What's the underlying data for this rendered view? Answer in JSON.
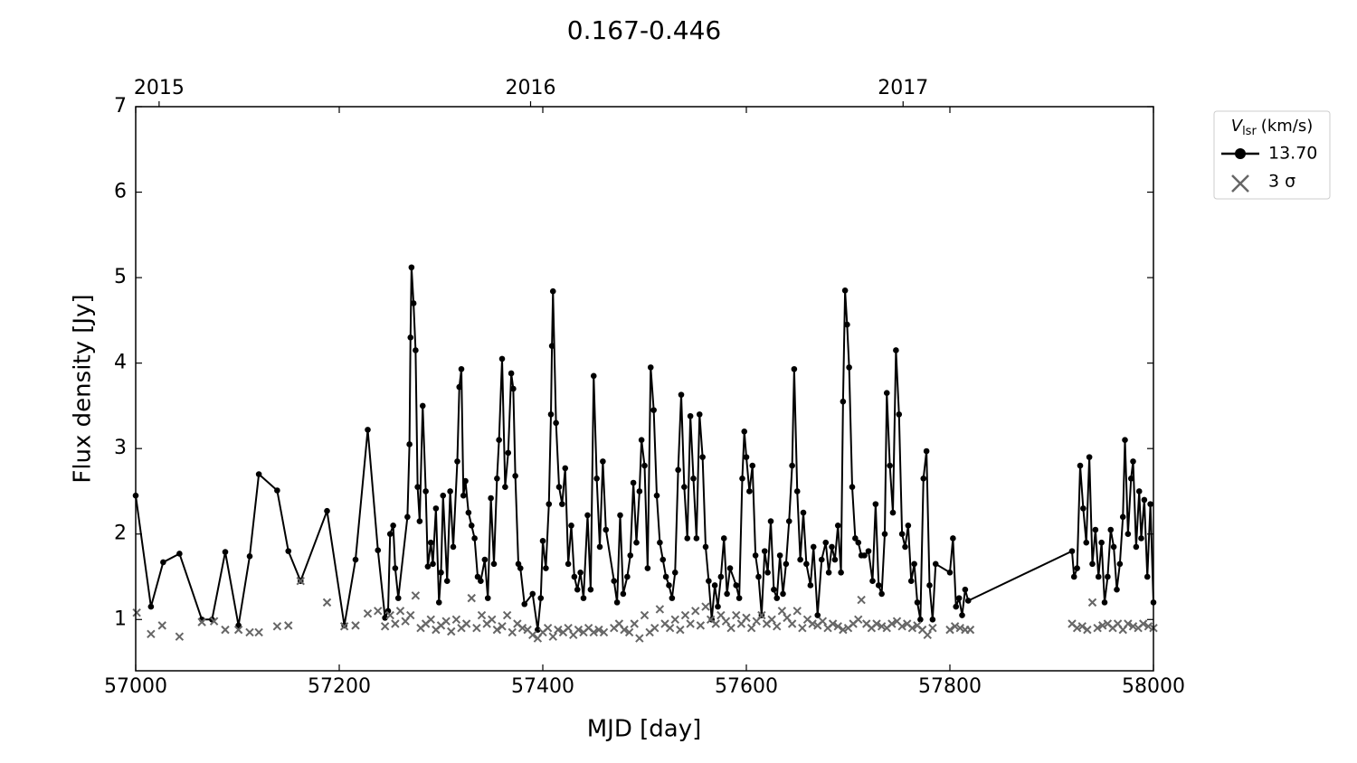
{
  "chart_data": {
    "type": "line",
    "title": "0.167-0.446",
    "xlabel": "MJD [day]",
    "ylabel": "Flux density [Jy]",
    "xlim": [
      57000,
      58000
    ],
    "xticks": [
      57000,
      57200,
      57400,
      57600,
      57800,
      58000
    ],
    "x2ticks": [
      {
        "value": 57023,
        "label": "2015"
      },
      {
        "value": 57388,
        "label": "2016"
      },
      {
        "value": 57754,
        "label": "2017"
      }
    ],
    "ylim": [
      0.4,
      7
    ],
    "yticks": [
      1,
      2,
      3,
      4,
      5,
      6,
      7
    ],
    "legend_title": {
      "symbol": "V",
      "subscript": "lsr",
      "unit": "(km/s)"
    },
    "legend": "outside upper right",
    "series": [
      {
        "name": "13.70",
        "color": "#000000",
        "marker": "circle",
        "x": [
          57000,
          57015,
          57027,
          57043,
          57065,
          57075,
          57088,
          57101,
          57112,
          57121,
          57139,
          57150,
          57162,
          57188,
          57205,
          57216,
          57228,
          57238,
          57245,
          57248,
          57250,
          57253,
          57255,
          57258,
          57267,
          57269,
          57270,
          57271,
          57273,
          57275,
          57277,
          57279,
          57282,
          57285,
          57287,
          57290,
          57292,
          57295,
          57298,
          57300,
          57302,
          57306,
          57309,
          57312,
          57316,
          57318,
          57320,
          57322,
          57324,
          57327,
          57330,
          57333,
          57336,
          57339,
          57343,
          57346,
          57349,
          57352,
          57355,
          57357,
          57360,
          57363,
          57366,
          57369,
          57371,
          57373,
          57376,
          57378,
          57382,
          57390,
          57395,
          57398,
          57400,
          57403,
          57406,
          57408,
          57409,
          57410,
          57413,
          57416,
          57419,
          57422,
          57425,
          57428,
          57431,
          57434,
          57437,
          57440,
          57444,
          57447,
          57450,
          57453,
          57456,
          57459,
          57462,
          57470,
          57473,
          57476,
          57479,
          57483,
          57486,
          57489,
          57492,
          57495,
          57497,
          57500,
          57503,
          57506,
          57509,
          57512,
          57515,
          57518,
          57521,
          57524,
          57527,
          57530,
          57533,
          57536,
          57539,
          57542,
          57545,
          57548,
          57551,
          57554,
          57557,
          57560,
          57563,
          57566,
          57569,
          57572,
          57575,
          57578,
          57581,
          57584,
          57590,
          57593,
          57596,
          57598,
          57600,
          57603,
          57606,
          57609,
          57612,
          57615,
          57618,
          57621,
          57624,
          57627,
          57630,
          57633,
          57636,
          57639,
          57642,
          57645,
          57647,
          57650,
          57653,
          57656,
          57659,
          57663,
          57666,
          57670,
          57674,
          57678,
          57681,
          57684,
          57687,
          57690,
          57693,
          57695,
          57697,
          57699,
          57701,
          57704,
          57707,
          57710,
          57713,
          57716,
          57720,
          57724,
          57727,
          57730,
          57733,
          57736,
          57738,
          57741,
          57744,
          57747,
          57750,
          57753,
          57756,
          57759,
          57762,
          57765,
          57768,
          57771,
          57774,
          57777,
          57780,
          57783,
          57786,
          57800,
          57803,
          57806,
          57809,
          57812,
          57815,
          57818,
          57920,
          57922,
          57925,
          57928,
          57931,
          57934,
          57937,
          57940,
          57943,
          57946,
          57949,
          57952,
          57955,
          57958,
          57961,
          57964,
          57967,
          57970,
          57972,
          57975,
          57978,
          57980,
          57983,
          57986,
          57988,
          57991,
          57994,
          57997,
          58000
        ],
        "values": [
          2.45,
          1.15,
          1.67,
          1.77,
          1.0,
          1.0,
          1.79,
          0.93,
          1.74,
          2.7,
          2.51,
          1.8,
          1.45,
          2.27,
          0.93,
          1.7,
          3.22,
          1.81,
          1.02,
          1.1,
          2.0,
          2.1,
          1.6,
          1.25,
          2.2,
          3.05,
          4.3,
          5.12,
          4.7,
          4.15,
          2.55,
          2.15,
          3.5,
          2.5,
          1.62,
          1.9,
          1.65,
          2.3,
          1.2,
          1.55,
          2.45,
          1.45,
          2.5,
          1.85,
          2.85,
          3.72,
          3.93,
          2.45,
          2.62,
          2.25,
          2.1,
          1.95,
          1.5,
          1.45,
          1.7,
          1.25,
          2.42,
          1.65,
          2.65,
          3.1,
          4.05,
          2.55,
          2.95,
          3.88,
          3.7,
          2.68,
          1.65,
          1.6,
          1.18,
          1.3,
          0.88,
          1.25,
          1.92,
          1.6,
          2.35,
          3.4,
          4.2,
          4.84,
          3.3,
          2.55,
          2.35,
          2.77,
          1.65,
          2.1,
          1.5,
          1.35,
          1.55,
          1.25,
          2.22,
          1.35,
          3.85,
          2.65,
          1.85,
          2.85,
          2.05,
          1.45,
          1.2,
          2.22,
          1.3,
          1.5,
          1.75,
          2.6,
          1.9,
          2.5,
          3.1,
          2.8,
          1.6,
          3.95,
          3.45,
          2.45,
          1.9,
          1.7,
          1.5,
          1.4,
          1.25,
          1.55,
          2.75,
          3.63,
          2.55,
          1.95,
          3.38,
          2.65,
          1.95,
          3.4,
          2.9,
          1.85,
          1.45,
          1.0,
          1.4,
          1.15,
          1.5,
          1.95,
          1.3,
          1.6,
          1.4,
          1.25,
          2.65,
          3.2,
          2.9,
          2.5,
          2.8,
          1.75,
          1.5,
          1.05,
          1.8,
          1.55,
          2.15,
          1.35,
          1.25,
          1.75,
          1.3,
          1.65,
          2.15,
          2.8,
          3.93,
          2.5,
          1.7,
          2.25,
          1.65,
          1.4,
          1.85,
          1.05,
          1.7,
          1.9,
          1.55,
          1.85,
          1.7,
          2.1,
          1.55,
          3.55,
          4.85,
          4.45,
          3.95,
          2.55,
          1.95,
          1.9,
          1.75,
          1.75,
          1.8,
          1.45,
          2.35,
          1.4,
          1.3,
          2.0,
          3.65,
          2.8,
          2.25,
          4.15,
          3.4,
          2.0,
          1.85,
          2.1,
          1.45,
          1.65,
          1.2,
          1.0,
          2.65,
          2.97,
          1.4,
          1.0,
          1.65,
          1.55,
          1.95,
          1.15,
          1.25,
          1.05,
          1.35,
          1.22,
          1.8,
          1.5,
          1.6,
          2.8,
          2.3,
          1.9,
          2.9,
          1.65,
          2.05,
          1.5,
          1.9,
          1.2,
          1.5,
          2.05,
          1.85,
          1.35,
          1.65,
          2.2,
          3.1,
          2.0,
          2.65,
          2.85,
          1.85,
          2.5,
          1.95,
          2.4,
          1.5,
          2.35,
          1.2
        ]
      },
      {
        "name": "3 σ",
        "color": "#666666",
        "marker": "x",
        "x": [
          57001,
          57015,
          57026,
          57043,
          57065,
          57077,
          57088,
          57101,
          57112,
          57121,
          57139,
          57150,
          57162,
          57188,
          57205,
          57216,
          57228,
          57238,
          57245,
          57250,
          57255,
          57260,
          57265,
          57270,
          57275,
          57280,
          57285,
          57290,
          57295,
          57300,
          57305,
          57310,
          57315,
          57320,
          57325,
          57330,
          57335,
          57340,
          57345,
          57350,
          57355,
          57360,
          57365,
          57370,
          57375,
          57380,
          57385,
          57390,
          57395,
          57400,
          57405,
          57410,
          57415,
          57420,
          57425,
          57430,
          57435,
          57440,
          57445,
          57450,
          57455,
          57460,
          57470,
          57475,
          57480,
          57485,
          57490,
          57495,
          57500,
          57505,
          57510,
          57515,
          57520,
          57525,
          57530,
          57535,
          57540,
          57545,
          57550,
          57555,
          57560,
          57565,
          57570,
          57575,
          57580,
          57585,
          57590,
          57595,
          57600,
          57605,
          57610,
          57615,
          57620,
          57625,
          57630,
          57635,
          57640,
          57645,
          57650,
          57655,
          57660,
          57665,
          57670,
          57675,
          57680,
          57685,
          57690,
          57695,
          57700,
          57705,
          57710,
          57713,
          57718,
          57723,
          57728,
          57733,
          57738,
          57743,
          57748,
          57753,
          57758,
          57763,
          57768,
          57773,
          57778,
          57783,
          57800,
          57805,
          57810,
          57815,
          57820,
          57920,
          57925,
          57930,
          57935,
          57940,
          57945,
          57950,
          57955,
          57960,
          57965,
          57970,
          57975,
          57980,
          57985,
          57990,
          57995,
          58000
        ],
        "values": [
          1.08,
          0.83,
          0.93,
          0.8,
          0.97,
          0.98,
          0.88,
          0.88,
          0.85,
          0.85,
          0.92,
          0.93,
          1.45,
          1.2,
          0.92,
          0.93,
          1.07,
          1.1,
          0.92,
          1.05,
          0.95,
          1.1,
          0.98,
          1.05,
          1.28,
          0.9,
          0.95,
          1.0,
          0.88,
          0.93,
          0.98,
          0.86,
          1.0,
          0.9,
          0.95,
          1.25,
          0.9,
          1.05,
          0.95,
          1.0,
          0.88,
          0.92,
          1.05,
          0.85,
          0.95,
          0.9,
          0.88,
          0.82,
          0.78,
          0.85,
          0.9,
          0.8,
          0.88,
          0.85,
          0.9,
          0.82,
          0.88,
          0.85,
          0.9,
          0.85,
          0.88,
          0.85,
          0.9,
          0.95,
          0.88,
          0.85,
          0.95,
          0.78,
          1.05,
          0.85,
          0.9,
          1.12,
          0.95,
          0.9,
          1.0,
          0.88,
          1.05,
          0.95,
          1.1,
          0.93,
          1.15,
          1.0,
          0.95,
          1.05,
          0.98,
          0.9,
          1.05,
          0.95,
          1.02,
          0.9,
          0.98,
          1.05,
          0.95,
          1.0,
          0.92,
          1.1,
          1.02,
          0.95,
          1.1,
          0.9,
          1.0,
          0.95,
          0.93,
          0.98,
          0.9,
          0.95,
          0.92,
          0.88,
          0.9,
          0.95,
          1.0,
          1.23,
          0.95,
          0.9,
          0.95,
          0.92,
          0.9,
          0.95,
          0.98,
          0.92,
          0.95,
          0.9,
          0.93,
          0.88,
          0.82,
          0.9,
          0.88,
          0.92,
          0.9,
          0.88,
          0.88,
          0.95,
          0.9,
          0.92,
          0.88,
          1.2,
          0.9,
          0.93,
          0.95,
          0.9,
          0.95,
          0.88,
          0.95,
          0.92,
          0.9,
          0.95,
          0.92,
          0.9
        ]
      }
    ]
  }
}
